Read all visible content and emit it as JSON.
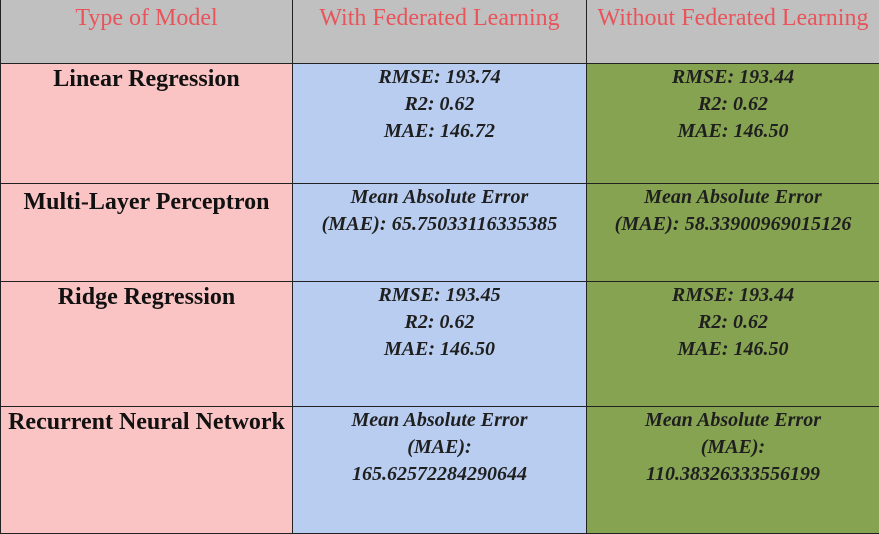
{
  "header": {
    "col1": "Type of Model",
    "col2": "With Federated Learning",
    "col3": "Without Federated Learning"
  },
  "rows": [
    {
      "model": "Linear Regression",
      "with_fl": [
        "RMSE: 193.74",
        "R2: 0.62",
        "MAE: 146.72"
      ],
      "without_fl": [
        "RMSE: 193.44",
        "R2: 0.62",
        "MAE: 146.50"
      ]
    },
    {
      "model": "Multi-Layer Perceptron",
      "with_fl": [
        "Mean Absolute Error",
        "(MAE): 65.75033116335385"
      ],
      "without_fl": [
        "Mean Absolute Error",
        "(MAE): 58.33900969015126"
      ]
    },
    {
      "model": "Ridge Regression",
      "with_fl": [
        "RMSE: 193.45",
        "R2: 0.62",
        "MAE: 146.50"
      ],
      "without_fl": [
        "RMSE: 193.44",
        "R2: 0.62",
        "MAE: 146.50"
      ]
    },
    {
      "model": "Recurrent Neural Network",
      "with_fl": [
        "Mean Absolute Error",
        "(MAE):",
        "165.62572284290644"
      ],
      "without_fl": [
        "Mean Absolute Error",
        "(MAE):",
        "110.38326333556199"
      ]
    }
  ]
}
